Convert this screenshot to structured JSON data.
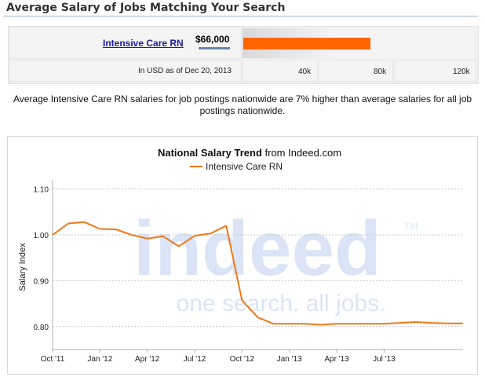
{
  "header": {
    "title": "Average Salary of Jobs Matching Your Search"
  },
  "salary": {
    "job_title": "Intensive Care RN",
    "amount": "$66,000",
    "amount_value": 66000,
    "note": "In USD as of Dec 20, 2013",
    "ticks": [
      "40k",
      "80k",
      "120k"
    ],
    "bar_color": "#ff6600"
  },
  "description": "Average Intensive Care RN salaries for job postings nationwide are 7% higher than average salaries for all job postings nationwide.",
  "watermark": {
    "brand": "indeed",
    "tagline": "one search. all jobs.",
    "tm": "TM"
  },
  "chart_data": {
    "type": "line",
    "title_bold": "National Salary Trend",
    "title_rest": " from Indeed.com",
    "ylabel": "Salary Index",
    "ylim": [
      0.75,
      1.12
    ],
    "y_ticks": [
      "1.10",
      "1.00",
      "0.90",
      "0.80"
    ],
    "y_tick_values": [
      1.1,
      1.0,
      0.9,
      0.8
    ],
    "x_ticks": [
      "Oct '11",
      "Jan '12",
      "Apr '12",
      "Jul '12",
      "Oct '12",
      "Jan '13",
      "Apr '13",
      "Jul '13"
    ],
    "grid": true,
    "legend_position": "top",
    "series": [
      {
        "name": "Intensive Care RN",
        "color": "#f07818",
        "x": [
          0,
          1,
          2,
          3,
          4,
          5,
          6,
          7,
          8,
          9,
          10,
          11,
          12,
          13,
          14,
          15,
          16,
          17,
          18,
          19,
          20,
          21,
          22,
          23,
          24,
          25,
          26
        ],
        "values": [
          1.0,
          1.025,
          1.028,
          1.013,
          1.012,
          1.0,
          0.992,
          0.997,
          0.975,
          0.998,
          1.003,
          1.02,
          0.857,
          0.82,
          0.806,
          0.806,
          0.806,
          0.804,
          0.806,
          0.806,
          0.806,
          0.806,
          0.808,
          0.81,
          0.808,
          0.807,
          0.807
        ]
      }
    ]
  }
}
